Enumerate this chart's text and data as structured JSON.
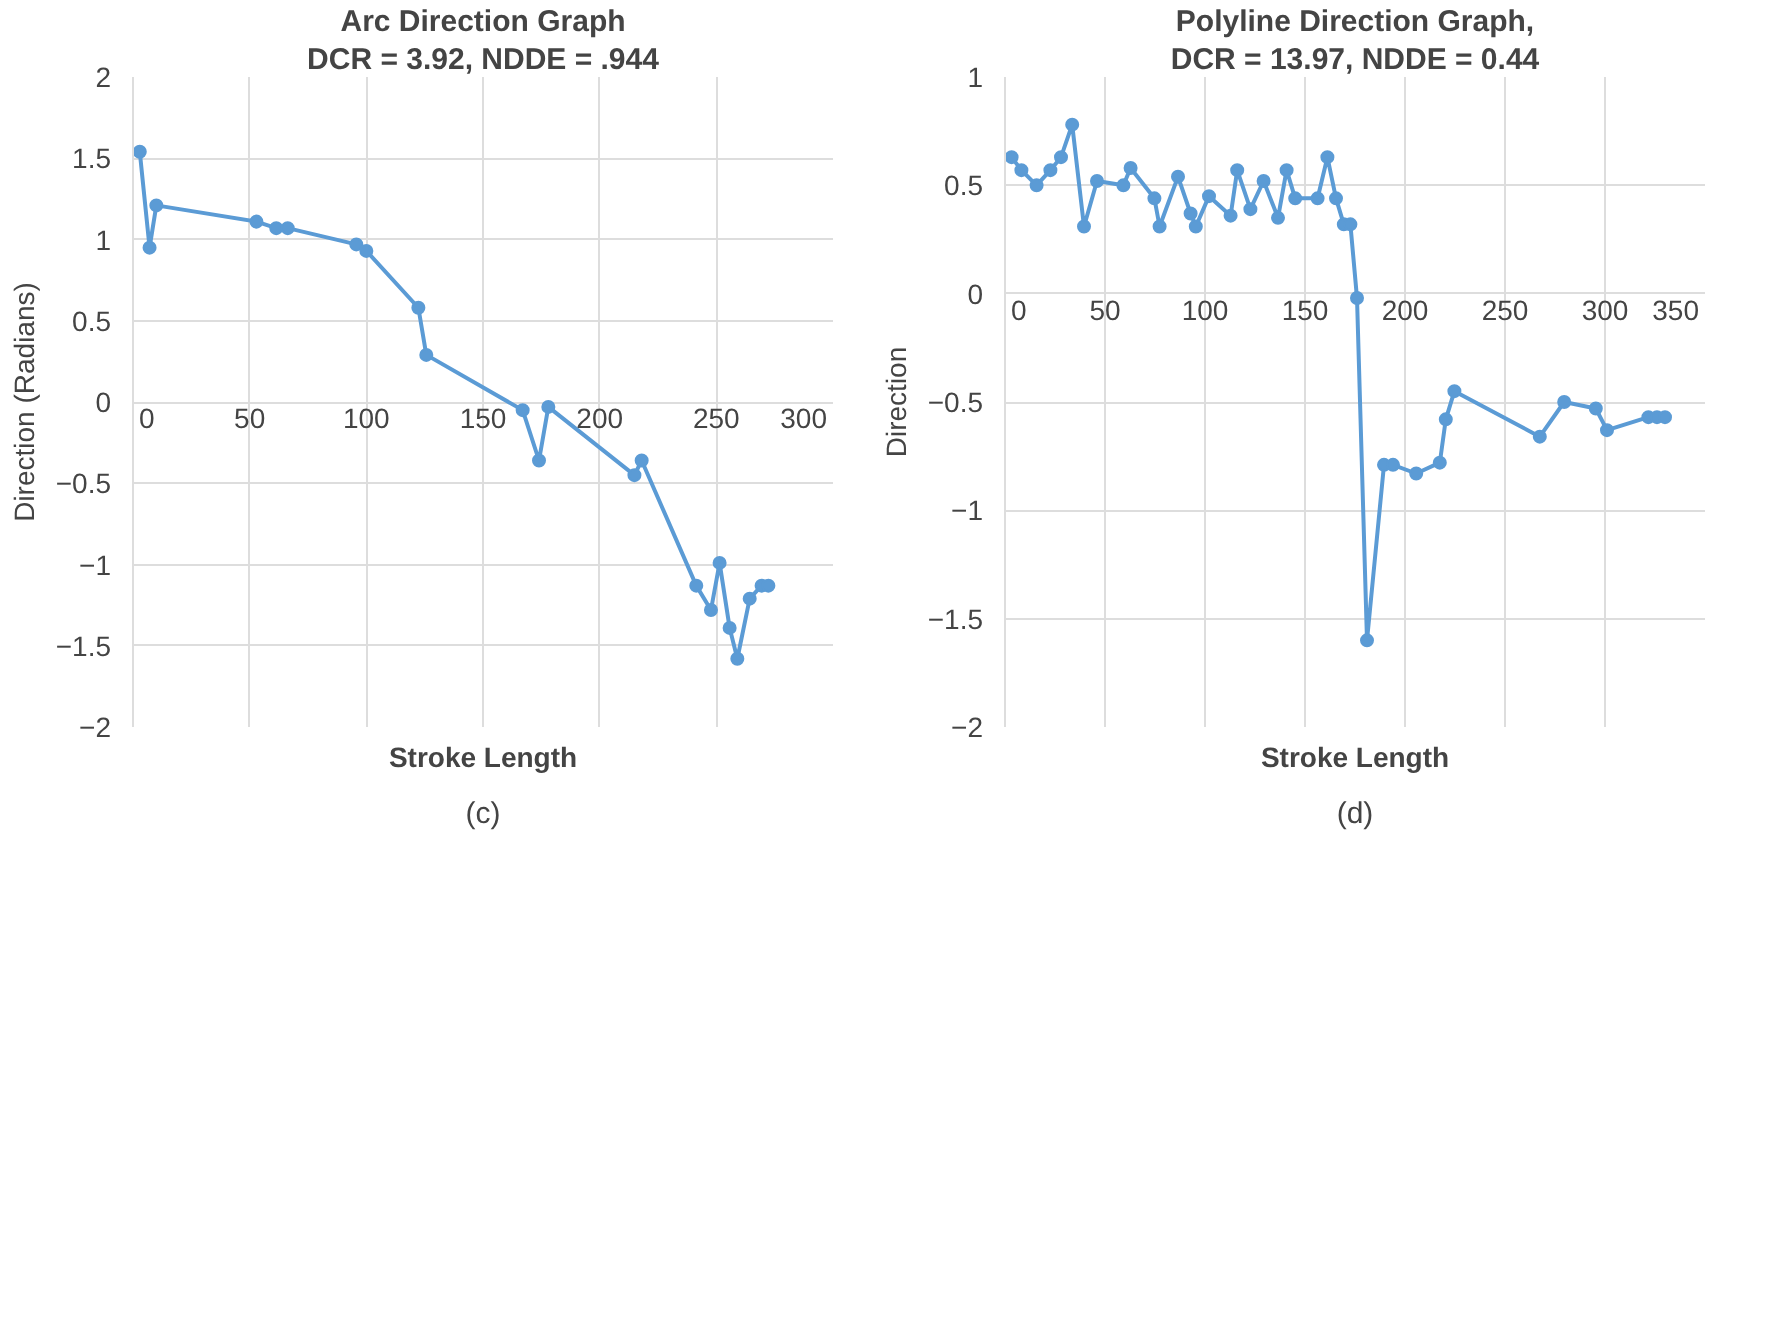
{
  "chart_data": [
    {
      "type": "line",
      "title": "Arc Direction Graph",
      "subtitle": "DCR = 3.92, NDDE = .944",
      "xlabel": "Stroke Length",
      "ylabel": "Direction (Radians)",
      "annotations": [
        "(c)"
      ],
      "color": "#5b9bd5",
      "marker": "circle",
      "grid": true,
      "x": [
        2.9,
        7.1,
        10,
        52.9,
        61.4,
        66.3,
        95.7,
        100,
        122.3,
        125.7,
        167,
        174,
        178,
        214.9,
        218,
        241.4,
        247.7,
        251.4,
        255.7,
        259,
        264.3,
        269.4,
        272.3
      ],
      "values": [
        1.54,
        0.95,
        1.21,
        1.11,
        1.07,
        1.07,
        0.97,
        0.93,
        0.58,
        0.29,
        -0.05,
        -0.36,
        -0.03,
        -0.45,
        -0.36,
        -1.13,
        -1.28,
        -0.99,
        -1.39,
        -1.58,
        -1.21,
        -1.13,
        -1.13
      ],
      "xlim": [
        0,
        300
      ],
      "ylim": [
        -2,
        2
      ],
      "xticks": [
        0,
        50,
        100,
        150,
        200,
        250,
        300
      ],
      "yticks": [
        {
          "value": -2,
          "label": "−2"
        },
        {
          "value": -1.5,
          "label": "−1.5"
        },
        {
          "value": -1,
          "label": "−1"
        },
        {
          "value": -0.5,
          "label": "−0.5"
        },
        0,
        0.5,
        1,
        1.5,
        2
      ]
    },
    {
      "type": "line",
      "title": "Polyline Direction Graph,",
      "subtitle": "DCR = 13.97, NDDE = 0.44",
      "xlabel": "Stroke Length",
      "ylabel": "Direction",
      "annotations": [
        "(d)"
      ],
      "color": "#5b9bd5",
      "marker": "circle",
      "grid": true,
      "x": [
        3.3,
        8.2,
        15.8,
        22.7,
        28,
        33.6,
        39.5,
        46,
        59.2,
        62.8,
        74.7,
        77.3,
        86.5,
        92.8,
        95.4,
        102,
        112.8,
        116.1,
        122.7,
        129.3,
        136.5,
        140.8,
        145.1,
        156.3,
        161.2,
        165.5,
        169.4,
        172.7,
        176,
        181,
        189.5,
        194,
        205.6,
        217.4,
        220.4,
        224.7,
        267.4,
        279.6,
        295.4,
        301,
        321.7,
        326,
        330
      ],
      "values": [
        0.63,
        0.57,
        0.5,
        0.57,
        0.63,
        0.78,
        0.31,
        0.52,
        0.5,
        0.58,
        0.44,
        0.31,
        0.54,
        0.37,
        0.31,
        0.45,
        0.36,
        0.57,
        0.39,
        0.52,
        0.35,
        0.57,
        0.44,
        0.44,
        0.63,
        0.44,
        0.32,
        0.32,
        -0.02,
        -1.6,
        -0.79,
        -0.79,
        -0.83,
        -0.78,
        -0.58,
        -0.45,
        -0.66,
        -0.5,
        -0.53,
        -0.63,
        -0.57,
        -0.57,
        -0.57
      ],
      "xlim": [
        0,
        350
      ],
      "ylim": [
        -2,
        1
      ],
      "xticks": [
        0,
        50,
        100,
        150,
        200,
        250,
        300,
        350
      ],
      "yticks": [
        {
          "value": -2,
          "label": "−2"
        },
        {
          "value": -1.5,
          "label": "−1.5"
        },
        {
          "value": -1,
          "label": "−1"
        },
        {
          "value": -0.5,
          "label": "−0.5"
        },
        0,
        0.5,
        1
      ]
    }
  ]
}
